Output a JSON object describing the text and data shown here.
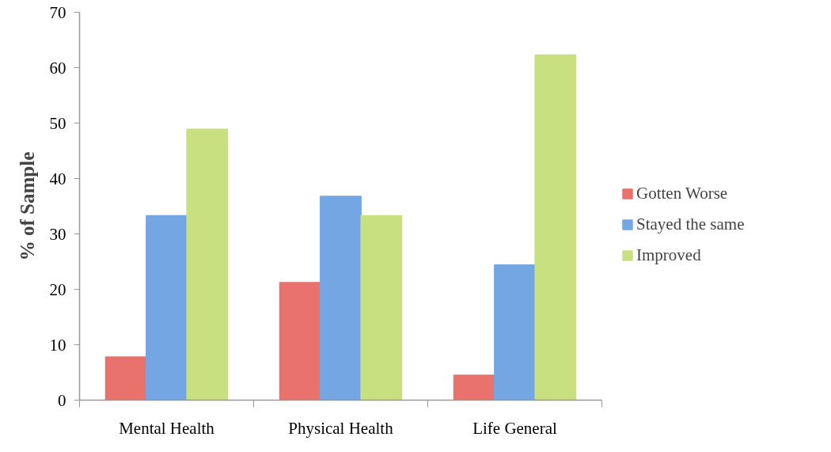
{
  "chart_data": {
    "type": "bar",
    "ylabel": "% of Sample",
    "categories": [
      "Mental Health",
      "Physical Health",
      "Life General"
    ],
    "series": [
      {
        "name": "Gotten Worse",
        "color": "#e9726c",
        "values": [
          7.8,
          21.2,
          4.5
        ]
      },
      {
        "name": "Stayed the same",
        "color": "#74a6e4",
        "values": [
          33.3,
          36.8,
          24.4
        ]
      },
      {
        "name": "Improved",
        "color": "#c8e07f",
        "values": [
          48.9,
          33.3,
          62.3
        ]
      }
    ],
    "ylim": [
      0,
      70
    ],
    "yticks": [
      0,
      10,
      20,
      30,
      40,
      50,
      60,
      70
    ],
    "grid": false,
    "legend": "right"
  }
}
